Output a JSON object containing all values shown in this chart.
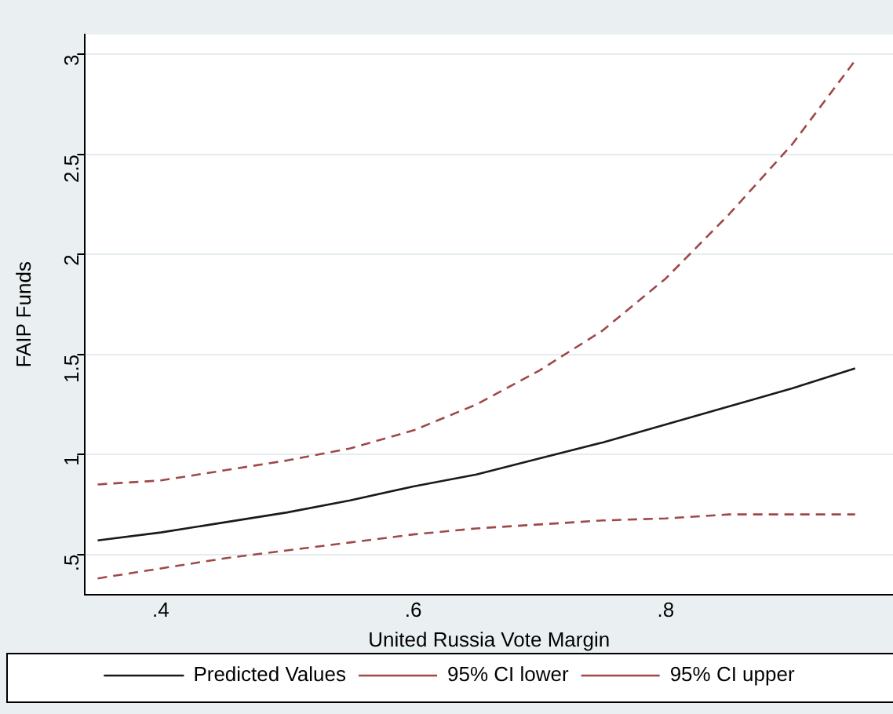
{
  "chart_data": {
    "type": "line",
    "xlabel": "United Russia Vote Margin",
    "ylabel": "FAIP Funds",
    "x": [
      0.35,
      0.4,
      0.45,
      0.5,
      0.55,
      0.6,
      0.65,
      0.7,
      0.75,
      0.8,
      0.85,
      0.9,
      0.95
    ],
    "series": [
      {
        "name": "Predicted Values",
        "color": "#1a1a1a",
        "line_style": "solid",
        "values": [
          0.57,
          0.61,
          0.66,
          0.71,
          0.77,
          0.84,
          0.9,
          0.98,
          1.06,
          1.15,
          1.24,
          1.33,
          1.43
        ]
      },
      {
        "name": "95% CI lower",
        "color": "#a04848",
        "line_style": "dashed",
        "values": [
          0.38,
          0.43,
          0.48,
          0.52,
          0.56,
          0.6,
          0.63,
          0.65,
          0.67,
          0.68,
          0.7,
          0.7,
          0.7
        ]
      },
      {
        "name": "95% CI upper",
        "color": "#a04848",
        "line_style": "dashed",
        "values": [
          0.85,
          0.87,
          0.92,
          0.97,
          1.03,
          1.12,
          1.25,
          1.42,
          1.62,
          1.88,
          2.2,
          2.55,
          2.97
        ]
      }
    ],
    "xlim": [
      0.34,
      0.98
    ],
    "xticks": [
      {
        "value": 0.4,
        "label": ".4"
      },
      {
        "value": 0.6,
        "label": ".6"
      },
      {
        "value": 0.8,
        "label": ".8"
      }
    ],
    "ylim": [
      0.3,
      3.1
    ],
    "yticks": [
      {
        "value": 0.5,
        "label": ".5"
      },
      1,
      1.5,
      2,
      2.5,
      3
    ],
    "grid": "y",
    "legend": "bottom",
    "marker": "none"
  }
}
